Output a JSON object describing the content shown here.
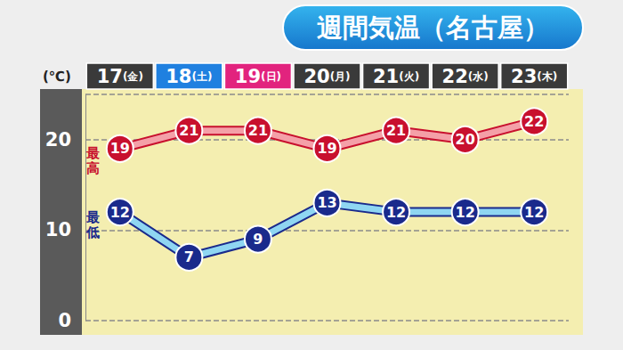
{
  "chart_data": {
    "type": "line",
    "title": "週間気温（名古屋）",
    "y_label": "(℃)",
    "categories": [
      "17(金)",
      "18(土)",
      "19(日)",
      "20(月)",
      "21(火)",
      "22(水)",
      "23(木)"
    ],
    "series": [
      {
        "name": "最高",
        "color": "#c8102e",
        "values": [
          19,
          21,
          21,
          19,
          21,
          20,
          22
        ]
      },
      {
        "name": "最低",
        "color": "#1a2a8c",
        "values": [
          12,
          7,
          9,
          13,
          12,
          12,
          12
        ]
      }
    ],
    "ylim": [
      0,
      25
    ],
    "yticks": [
      0,
      10,
      20
    ],
    "grid": true,
    "data_labels": true,
    "marker": "circle"
  }
}
